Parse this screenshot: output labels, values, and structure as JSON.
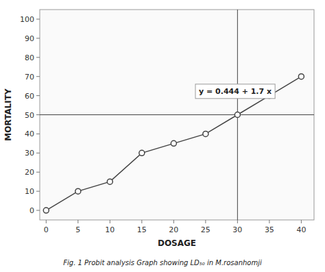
{
  "chart_data": {
    "type": "line",
    "x": [
      0,
      5,
      10,
      15,
      20,
      25,
      30,
      35,
      40
    ],
    "values": [
      0,
      10,
      15,
      30,
      35,
      40,
      50,
      60,
      70
    ],
    "annotation": "y = 0.444 + 1.7 x",
    "xlabel": "DOSAGE",
    "ylabel": "MORTALITY",
    "caption": "Fig. 1  Probit analysis Graph showing LD₅₀ in M.rosanhomji",
    "xlim": [
      -1,
      42
    ],
    "ylim": [
      -5,
      105
    ],
    "xticks": [
      0,
      5,
      10,
      15,
      20,
      25,
      30,
      35,
      40
    ],
    "yticks": [
      0,
      10,
      20,
      30,
      40,
      50,
      60,
      70,
      80,
      90,
      100
    ],
    "hline": 50,
    "vline": 30,
    "color": "#444444",
    "marker": "circle",
    "grid": false
  }
}
